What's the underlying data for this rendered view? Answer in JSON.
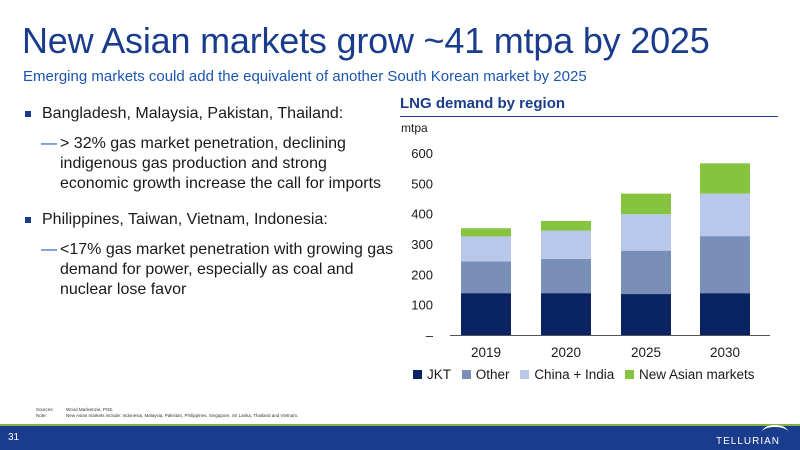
{
  "slide": {
    "title": "New Asian markets grow ~41 mtpa by 2025",
    "subtitle": "Emerging markets could add the equivalent of another South Korean market by 2025",
    "page_number": "31",
    "logo_text": "TELLURIAN"
  },
  "bullets": [
    {
      "text": "Bangladesh, Malaysia, Pakistan, Thailand:",
      "sub": "> 32% gas market penetration, declining indigenous gas production and strong economic growth increase the call for imports"
    },
    {
      "text": "Philippines, Taiwan, Vietnam, Indonesia:",
      "sub": "<17% gas market penetration with growing gas demand for power, especially as coal and nuclear lose favor"
    }
  ],
  "sub_marker": "—",
  "notes": {
    "sources_label": "Sources:",
    "sources": "Wood Mackenzie, PGE.",
    "note_label": "Note:",
    "note": "New Asian markets include: Indonesia, Malaysia, Pakistan, Philippines, Singapore, Sri Lanka, Thailand and Vietnam."
  },
  "chart_data": {
    "type": "bar",
    "stacked": true,
    "title": "LNG demand by region",
    "ylabel": "mtpa",
    "categories": [
      "2019",
      "2020",
      "2025",
      "2030"
    ],
    "series": [
      {
        "name": "JKT",
        "color": "#0a2463",
        "values": [
          138,
          138,
          135,
          138
        ]
      },
      {
        "name": "Other",
        "color": "#7a8fb8",
        "values": [
          105,
          113,
          143,
          188
        ]
      },
      {
        "name": "China + India",
        "color": "#b8c8ea",
        "values": [
          82,
          93,
          120,
          140
        ]
      },
      {
        "name": "New Asian markets",
        "color": "#86c440",
        "values": [
          27,
          32,
          68,
          100
        ]
      }
    ],
    "ylim": [
      0,
      600
    ],
    "yticks": [
      0,
      100,
      200,
      300,
      400,
      500,
      600
    ],
    "ytick_labels": [
      "–",
      "100",
      "200",
      "300",
      "400",
      "500",
      "600"
    ],
    "legend_position": "bottom",
    "grid": false
  }
}
